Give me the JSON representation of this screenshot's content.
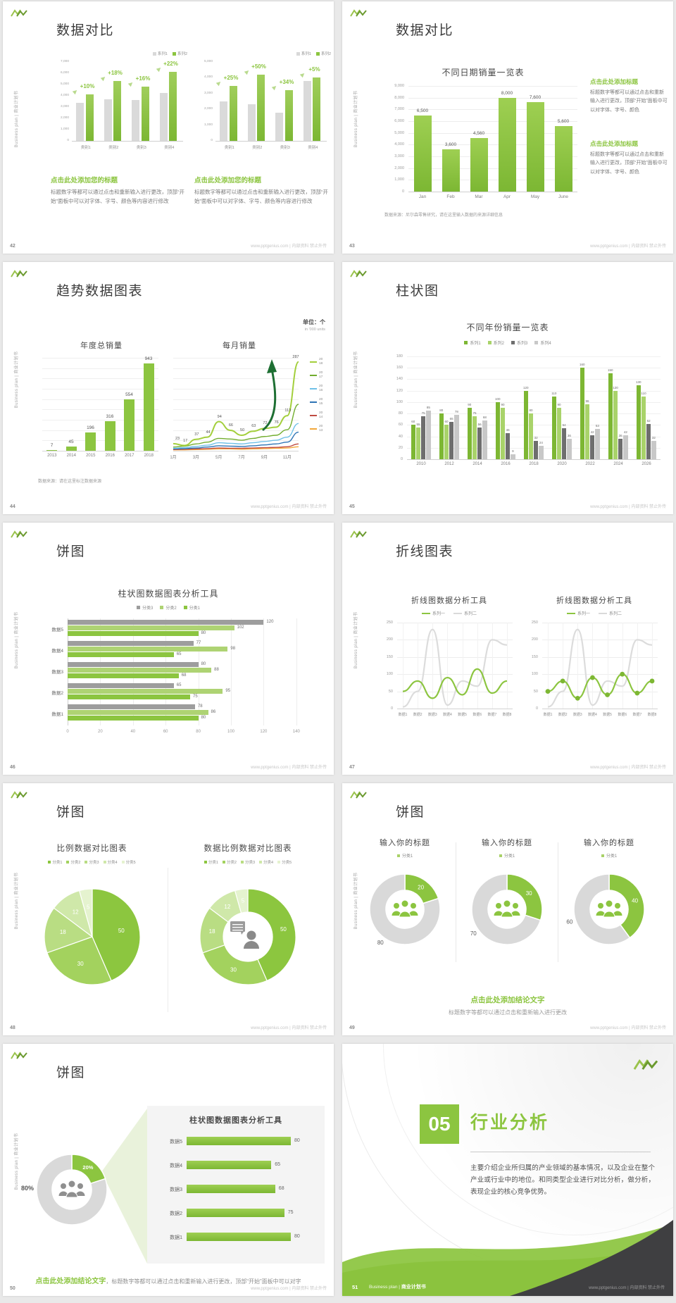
{
  "common": {
    "sidebar_text": "Business plan | 商业计划书",
    "footer_right": "www.pptgenius.com | 内部资料 禁止外传",
    "brand_green": "#8cc540",
    "gray_bar": "#d9d9d9"
  },
  "slides": [
    {
      "number": "42",
      "title": "数据对比",
      "type": "compare",
      "charts": [
        {
          "legend": [
            "系列1",
            "系列2"
          ],
          "ymax": 7000,
          "yticks": [
            "7,000",
            "6,000",
            "5,000",
            "4,000",
            "3,000",
            "2,000",
            "1,000",
            "0"
          ],
          "categories": [
            "类别1",
            "类别2",
            "类别3",
            "类别4"
          ],
          "series_gray": [
            3400,
            3700,
            3650,
            4250
          ],
          "series_green": [
            4100,
            5300,
            4800,
            6100
          ],
          "deltas": [
            "+10%",
            "+18%",
            "+16%",
            "+22%"
          ]
        },
        {
          "legend": [
            "系列1",
            "系列2"
          ],
          "ymax": 5000,
          "yticks": [
            "5,000",
            "4,000",
            "3,000",
            "2,000",
            "1,000",
            "0"
          ],
          "categories": [
            "类别1",
            "类别2",
            "类别3",
            "类别4"
          ],
          "series_gray": [
            2500,
            2300,
            1800,
            3800
          ],
          "series_green": [
            3500,
            4200,
            3200,
            4000
          ],
          "deltas": [
            "+25%",
            "+50%",
            "+34%",
            "+5%"
          ]
        }
      ],
      "blocks": [
        {
          "heading": "点击此处添加您的标题",
          "body": "标题数字等都可以通过点击和重新输入进行更改，顶部“开始”面板中可以对字体、字号、颜色等内容进行修改"
        },
        {
          "heading": "点击此处添加您的标题",
          "body": "标题数字等都可以通过点击和重新输入进行更改，顶部“开始”面板中可以对字体、字号、颜色等内容进行修改"
        }
      ]
    },
    {
      "number": "43",
      "title": "数据对比",
      "type": "barnotes",
      "chart": {
        "title": "不同日期销量一览表",
        "ymax": 9000,
        "yticks": [
          "9,000",
          "8,000",
          "7,000",
          "6,000",
          "5,000",
          "4,000",
          "3,000",
          "2,000",
          "1,000",
          "0"
        ],
        "categories": [
          "Jan",
          "Feb",
          "Mar",
          "Apr",
          "May",
          "June"
        ],
        "values": [
          6500,
          3600,
          4560,
          8000,
          7600,
          5600
        ],
        "labels": [
          "6,500",
          "3,600",
          "4,560",
          "8,000",
          "7,600",
          "5,600"
        ]
      },
      "note": "数据来源：尼尔森零售研究，请在这里输入数据的来源详细信息",
      "blocks": [
        {
          "heading": "点击此处添加标题",
          "body": "标题数字等都可以通过点击和重新输入进行更改，顶部“开始”面板中可以对字体、字号、颜色"
        },
        {
          "heading": "点击此处添加标题",
          "body": "标题数字等都可以通过点击和重新输入进行更改，顶部“开始”面板中可以对字体、字号、颜色"
        }
      ]
    },
    {
      "number": "44",
      "title": "趋势数据图表",
      "type": "trend",
      "unit_note": "单位：个",
      "unit_sub": "in '000 units",
      "bar": {
        "title": "年度总销量",
        "ymax": 1000,
        "categories": [
          "2013",
          "2014",
          "2015",
          "2016",
          "2017",
          "2018"
        ],
        "values": [
          7,
          45,
          196,
          316,
          554,
          943
        ]
      },
      "line": {
        "title": "每月销量",
        "ymax": 300,
        "x_labels": [
          "1月",
          "3月",
          "5月",
          "7月",
          "9月",
          "11月"
        ],
        "series": [
          {
            "name": "2013",
            "color": "#f2a73b",
            "values": [
              3,
              3,
              4,
              5,
              6,
              6,
              5,
              6,
              7,
              8,
              9,
              13
            ]
          },
          {
            "name": "2014",
            "color": "#bf4b42",
            "values": [
              4,
              5,
              6,
              7,
              9,
              8,
              8,
              9,
              10,
              11,
              13,
              22
            ]
          },
          {
            "name": "2015",
            "color": "#2e74b5",
            "values": [
              6,
              7,
              9,
              12,
              16,
              15,
              14,
              16,
              19,
              22,
              28,
              60
            ]
          },
          {
            "name": "2016",
            "color": "#6fc0e7",
            "values": [
              8,
              10,
              14,
              18,
              26,
              24,
              22,
              26,
              30,
              34,
              44,
              88
            ]
          },
          {
            "name": "2017",
            "color": "#72ad2e",
            "values": [
              12,
              15,
              22,
              28,
              40,
              38,
              34,
              40,
              46,
              50,
              68,
              150
            ]
          },
          {
            "name": "2018",
            "color": "#a3cf3c",
            "values": [
              23,
              17,
              37,
              44,
              94,
              66,
              50,
              63,
              72,
              76,
              113,
              287
            ],
            "labeled": true
          }
        ],
        "legend_order": [
          "2018",
          "2017",
          "2016",
          "2015",
          "2014",
          "2013"
        ]
      },
      "note": "数据来源：请在这里标注数据来源"
    },
    {
      "number": "45",
      "title": "柱状图",
      "type": "grouped",
      "chart": {
        "title": "不同年份销量一览表",
        "legend": [
          "系列1",
          "系列2",
          "系列3",
          "系列4"
        ],
        "colors": [
          "#7db733",
          "#a9d36a",
          "#6e6e6e",
          "#c8c8c8"
        ],
        "ymax": 180,
        "yticks": [
          "180",
          "160",
          "140",
          "120",
          "100",
          "80",
          "60",
          "40",
          "20",
          "0"
        ],
        "categories": [
          "2010",
          "2012",
          "2014",
          "2016",
          "2018",
          "2020",
          "2022",
          "2024",
          "2026"
        ],
        "groups": [
          [
            60,
            55,
            75,
            85
          ],
          [
            80,
            60,
            65,
            78
          ],
          [
            90,
            75,
            56,
            68
          ],
          [
            100,
            90,
            46,
            9
          ],
          [
            120,
            80,
            32,
            24
          ],
          [
            110,
            90,
            54,
            36
          ],
          [
            160,
            96,
            42,
            53
          ],
          [
            150,
            120,
            36,
            42
          ],
          [
            130,
            110,
            62,
            32
          ]
        ]
      }
    },
    {
      "number": "46",
      "title": "饼图",
      "type": "hbars",
      "chart": {
        "title": "柱状图数据图表分析工具",
        "legend": [
          "分类3",
          "分类2",
          "分类1"
        ],
        "colors": [
          "#9d9d9d",
          "#aed373",
          "#8cc540"
        ],
        "xmax": 140,
        "xticks": [
          "0",
          "20",
          "40",
          "60",
          "80",
          "100",
          "120",
          "140"
        ],
        "rows": [
          {
            "label": "数据5",
            "values": [
              120,
              102,
              80
            ]
          },
          {
            "label": "数据4",
            "values": [
              77,
              98,
              65
            ]
          },
          {
            "label": "数据3",
            "values": [
              80,
              88,
              68
            ]
          },
          {
            "label": "数据2",
            "values": [
              65,
              95,
              75
            ]
          },
          {
            "label": "数据1",
            "values": [
              78,
              86,
              80
            ]
          }
        ]
      }
    },
    {
      "number": "47",
      "title": "折线图表",
      "type": "lines2",
      "charts": [
        {
          "title": "折线图数据分析工具",
          "legend": [
            "系列一",
            "系列二"
          ],
          "ymax": 250,
          "yticks": [
            "250",
            "200",
            "150",
            "100",
            "50",
            "0"
          ],
          "x_labels": [
            "数据1",
            "数据2",
            "数据3",
            "数据4",
            "数据5",
            "数据6",
            "数据7",
            "数据8"
          ],
          "green": [
            50,
            80,
            30,
            90,
            40,
            115,
            45,
            80
          ],
          "gray": [
            5,
            50,
            230,
            10,
            80,
            65,
            200,
            185
          ],
          "markers": false
        },
        {
          "title": "折线图数据分析工具",
          "legend": [
            "系列一",
            "系列二"
          ],
          "ymax": 250,
          "yticks": [
            "250",
            "200",
            "150",
            "100",
            "50",
            "0"
          ],
          "x_labels": [
            "数据1",
            "数据2",
            "数据3",
            "数据4",
            "数据5",
            "数据6",
            "数据7",
            "数据8"
          ],
          "green": [
            50,
            80,
            30,
            90,
            40,
            100,
            45,
            80
          ],
          "gray": [
            5,
            50,
            230,
            10,
            80,
            65,
            200,
            185
          ],
          "markers": true
        }
      ]
    },
    {
      "number": "48",
      "title": "饼图",
      "type": "pies",
      "charts": [
        {
          "title": "比例数据对比图表",
          "legend": [
            "分类1",
            "分类2",
            "分类3",
            "分类4",
            "分类5"
          ],
          "values": [
            50,
            30,
            18,
            12,
            5
          ],
          "colors": [
            "#8cc63f",
            "#a3d25e",
            "#b9dd83",
            "#cfe8a9",
            "#e5f3cf"
          ],
          "donut": false
        },
        {
          "title": "数据比例数据对比图表",
          "legend": [
            "分类1",
            "分类2",
            "分类3",
            "分类4",
            "分类5"
          ],
          "values": [
            50,
            30,
            18,
            12,
            5
          ],
          "colors": [
            "#8cc63f",
            "#a3d25e",
            "#b9dd83",
            "#cfe8a9",
            "#e5f3cf"
          ],
          "donut": true
        }
      ]
    },
    {
      "number": "49",
      "title": "饼图",
      "type": "donut3",
      "items": [
        {
          "title": "输入你的标题",
          "legend": "分类1",
          "green": 20,
          "gray": 80
        },
        {
          "title": "输入你的标题",
          "legend": "分类1",
          "green": 30,
          "gray": 70
        },
        {
          "title": "输入你的标题",
          "legend": "分类1",
          "green": 40,
          "gray": 60
        }
      ],
      "conclusion": {
        "heading": "点击此处添加结论文字",
        "body": "标题数字等都可以通过点击和重新输入进行更改"
      }
    },
    {
      "number": "50",
      "title": "饼图",
      "type": "donutpanel",
      "donut": {
        "green": 20,
        "gray": 80,
        "green_label": "20%",
        "gray_label": "80%"
      },
      "panel": {
        "title": "柱状图数据图表分析工具",
        "max": 100,
        "rows": [
          {
            "label": "数据5",
            "value": 80
          },
          {
            "label": "数据4",
            "value": 65
          },
          {
            "label": "数据3",
            "value": 68
          },
          {
            "label": "数据2",
            "value": 75
          },
          {
            "label": "数据1",
            "value": 80
          }
        ]
      },
      "conclusion": {
        "heading": "点击此处添加结论文字",
        "body": "，标题数字等都可以通过点击和重新输入进行更改，顶部“开始”面板中可以对字体、字号、颜色、行距等进行修改"
      }
    },
    {
      "number": "51",
      "type": "section",
      "badge": "05",
      "section_title": "行业分析",
      "body": "主要介绍企业所归属的产业领域的基本情况，以及企业在整个产业或行业中的地位。和同类型企业进行对比分析，做分析，表现企业的核心竞争优势。",
      "footer_brand": "Business plan",
      "footer_divider": "|",
      "footer_book": "商业计划书"
    }
  ]
}
